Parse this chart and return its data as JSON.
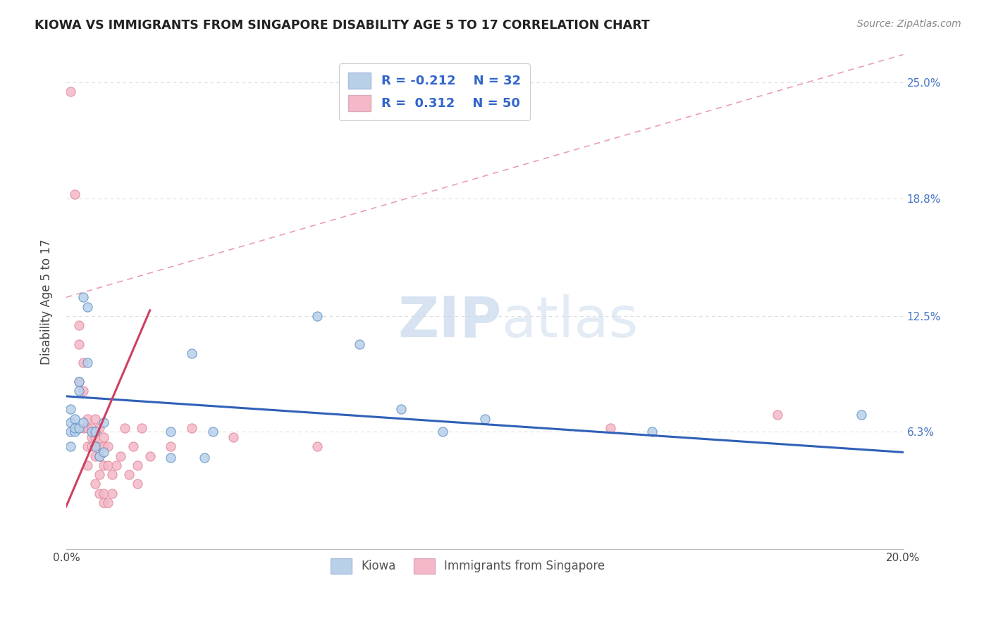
{
  "title": "KIOWA VS IMMIGRANTS FROM SINGAPORE DISABILITY AGE 5 TO 17 CORRELATION CHART",
  "source": "Source: ZipAtlas.com",
  "ylabel": "Disability Age 5 to 17",
  "xlim": [
    0.0,
    0.2
  ],
  "ylim": [
    0.0,
    0.265
  ],
  "xticks": [
    0.0,
    0.04,
    0.08,
    0.12,
    0.16,
    0.2
  ],
  "xticklabels": [
    "0.0%",
    "",
    "",
    "",
    "",
    "20.0%"
  ],
  "ytick_positions": [
    0.0,
    0.063,
    0.125,
    0.188,
    0.25
  ],
  "yticklabels_right": [
    "",
    "6.3%",
    "12.5%",
    "18.8%",
    "25.0%"
  ],
  "color_kiowa": "#b8d0e8",
  "color_singapore": "#f4b8c8",
  "color_kiowa_edge": "#6090c8",
  "color_singapore_edge": "#e08898",
  "color_kiowa_line": "#3060b8",
  "color_singapore_line": "#d04060",
  "color_diag_dash": "#e8a0b0",
  "watermark_zip": "ZIP",
  "watermark_atlas": "atlas",
  "kiowa_points": [
    [
      0.001,
      0.075
    ],
    [
      0.001,
      0.068
    ],
    [
      0.001,
      0.063
    ],
    [
      0.001,
      0.055
    ],
    [
      0.002,
      0.063
    ],
    [
      0.002,
      0.07
    ],
    [
      0.002,
      0.065
    ],
    [
      0.003,
      0.09
    ],
    [
      0.003,
      0.065
    ],
    [
      0.003,
      0.085
    ],
    [
      0.004,
      0.068
    ],
    [
      0.004,
      0.135
    ],
    [
      0.005,
      0.13
    ],
    [
      0.005,
      0.1
    ],
    [
      0.006,
      0.063
    ],
    [
      0.007,
      0.063
    ],
    [
      0.007,
      0.055
    ],
    [
      0.008,
      0.05
    ],
    [
      0.009,
      0.052
    ],
    [
      0.009,
      0.068
    ],
    [
      0.025,
      0.063
    ],
    [
      0.025,
      0.049
    ],
    [
      0.03,
      0.105
    ],
    [
      0.033,
      0.049
    ],
    [
      0.035,
      0.063
    ],
    [
      0.06,
      0.125
    ],
    [
      0.07,
      0.11
    ],
    [
      0.08,
      0.075
    ],
    [
      0.09,
      0.063
    ],
    [
      0.1,
      0.07
    ],
    [
      0.14,
      0.063
    ],
    [
      0.19,
      0.072
    ]
  ],
  "singapore_points": [
    [
      0.001,
      0.245
    ],
    [
      0.002,
      0.19
    ],
    [
      0.003,
      0.12
    ],
    [
      0.003,
      0.11
    ],
    [
      0.003,
      0.09
    ],
    [
      0.004,
      0.1
    ],
    [
      0.004,
      0.085
    ],
    [
      0.004,
      0.065
    ],
    [
      0.005,
      0.07
    ],
    [
      0.005,
      0.065
    ],
    [
      0.005,
      0.055
    ],
    [
      0.005,
      0.045
    ],
    [
      0.006,
      0.065
    ],
    [
      0.006,
      0.06
    ],
    [
      0.006,
      0.055
    ],
    [
      0.007,
      0.07
    ],
    [
      0.007,
      0.06
    ],
    [
      0.007,
      0.055
    ],
    [
      0.007,
      0.05
    ],
    [
      0.007,
      0.035
    ],
    [
      0.008,
      0.065
    ],
    [
      0.008,
      0.055
    ],
    [
      0.008,
      0.05
    ],
    [
      0.008,
      0.04
    ],
    [
      0.008,
      0.03
    ],
    [
      0.009,
      0.06
    ],
    [
      0.009,
      0.055
    ],
    [
      0.009,
      0.045
    ],
    [
      0.009,
      0.03
    ],
    [
      0.009,
      0.025
    ],
    [
      0.01,
      0.055
    ],
    [
      0.01,
      0.045
    ],
    [
      0.01,
      0.025
    ],
    [
      0.011,
      0.04
    ],
    [
      0.011,
      0.03
    ],
    [
      0.012,
      0.045
    ],
    [
      0.013,
      0.05
    ],
    [
      0.014,
      0.065
    ],
    [
      0.015,
      0.04
    ],
    [
      0.016,
      0.055
    ],
    [
      0.017,
      0.045
    ],
    [
      0.017,
      0.035
    ],
    [
      0.018,
      0.065
    ],
    [
      0.02,
      0.05
    ],
    [
      0.025,
      0.055
    ],
    [
      0.03,
      0.065
    ],
    [
      0.04,
      0.06
    ],
    [
      0.06,
      0.055
    ],
    [
      0.13,
      0.065
    ],
    [
      0.17,
      0.072
    ]
  ],
  "kiowa_trendline": [
    0.0,
    0.2,
    0.082,
    0.052
  ],
  "singapore_trendline": [
    0.0,
    0.02,
    0.023,
    0.128
  ],
  "diag_line": [
    0.0,
    0.135,
    0.2,
    0.265
  ]
}
